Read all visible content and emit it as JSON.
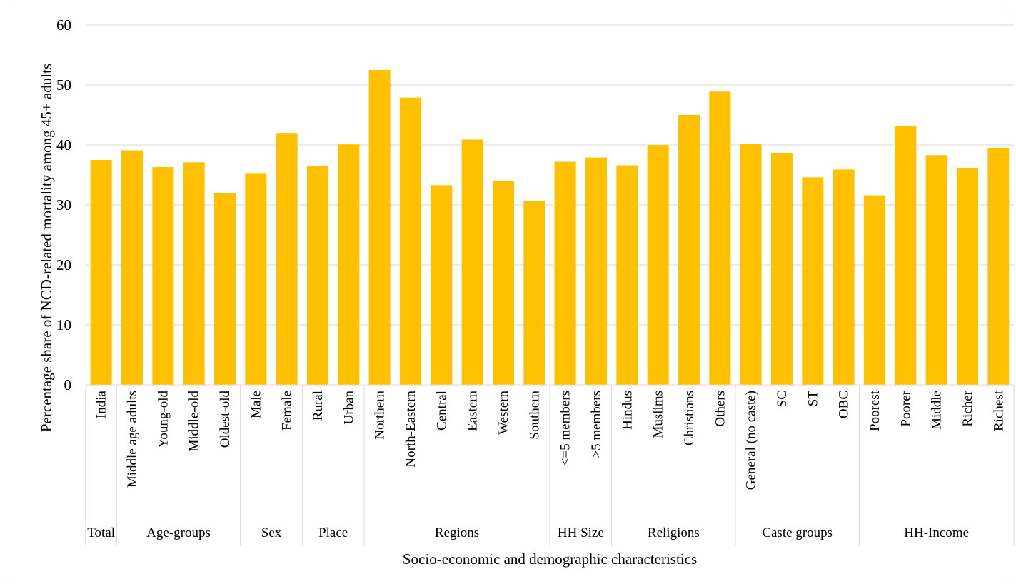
{
  "chart_data": {
    "type": "bar",
    "title": "",
    "xlabel": "Socio-economic and demographic characteristics",
    "ylabel": "Percentage share of NCD-related mortality among 45+ adults",
    "ylim": [
      0,
      60
    ],
    "yticks": [
      "0",
      "10",
      "20",
      "30",
      "40",
      "50",
      "60"
    ],
    "grid": true,
    "legend": "none",
    "bar_color": "#FFC000",
    "groups": [
      {
        "label": "Total",
        "size": 1
      },
      {
        "label": "Age-groups",
        "size": 4
      },
      {
        "label": "Sex",
        "size": 2
      },
      {
        "label": "Place",
        "size": 2
      },
      {
        "label": "Regions",
        "size": 6
      },
      {
        "label": "HH Size",
        "size": 2
      },
      {
        "label": "Religions",
        "size": 4
      },
      {
        "label": "Caste groups",
        "size": 4
      },
      {
        "label": "HH-Income",
        "size": 5
      }
    ],
    "categories": [
      "India",
      "Middle age adults",
      "Young-old",
      "Middle-old",
      "Oldest-old",
      "Male",
      "Female",
      "Rural",
      "Urban",
      "Northern",
      "North-Eastern",
      "Central",
      "Eastern",
      "Western",
      "Southern",
      "<=5 members",
      ">5 members",
      "Hindus",
      "Muslims",
      "Christians",
      "Others",
      "General (no caste)",
      "SC",
      "ST",
      "OBC",
      "Poorest",
      "Poorer",
      "Middle",
      "Richer",
      "Richest"
    ],
    "values": [
      37.5,
      39.1,
      36.3,
      37.1,
      32.0,
      35.2,
      42.0,
      36.5,
      40.1,
      52.5,
      47.9,
      33.3,
      40.9,
      34.0,
      30.7,
      37.2,
      37.9,
      36.6,
      40.0,
      45.0,
      48.9,
      40.2,
      38.6,
      34.6,
      35.9,
      31.6,
      43.1,
      38.3,
      36.2,
      39.5
    ]
  }
}
